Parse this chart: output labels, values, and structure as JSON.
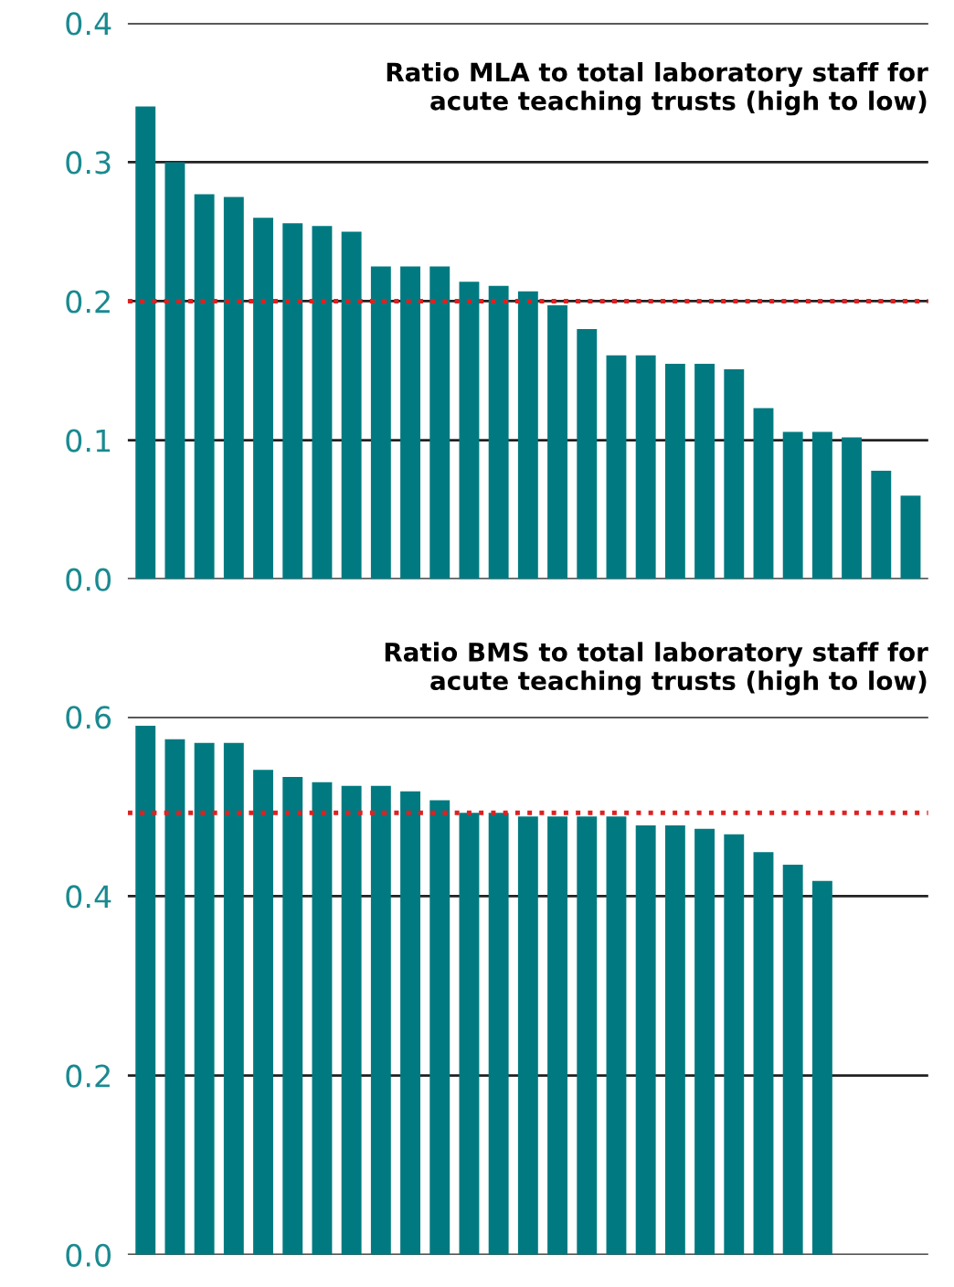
{
  "chart_data": [
    {
      "type": "bar",
      "title": "Ratio MLA to total laboratory staff for\nacute teaching trusts (high to low)",
      "categories": [
        null,
        null,
        null,
        null,
        null,
        null,
        null,
        null,
        null,
        null,
        null,
        null,
        null,
        null,
        null,
        null,
        null,
        null,
        null,
        null,
        null,
        null,
        null,
        null,
        null,
        null,
        null
      ],
      "values": [
        0.34,
        0.3,
        0.277,
        0.275,
        0.26,
        0.256,
        0.254,
        0.25,
        0.225,
        0.225,
        0.225,
        0.214,
        0.211,
        0.207,
        0.197,
        0.18,
        0.161,
        0.161,
        0.155,
        0.155,
        0.151,
        0.123,
        0.106,
        0.106,
        0.102,
        0.078,
        0.06
      ],
      "color": "#007a80",
      "ylim": [
        0,
        0.4
      ],
      "yticks": [
        {
          "value": 0,
          "label": "0.0"
        },
        0.1,
        0.2,
        0.3,
        0.4
      ],
      "grid": "y",
      "tick_labels": "y",
      "ref_lines": [
        {
          "axis": "y",
          "value": 0.2,
          "color": "#e02020",
          "line_style": "dotted"
        }
      ]
    },
    {
      "type": "bar",
      "title": "Ratio BMS to total laboratory staff for\nacute teaching trusts (high to low)",
      "categories": [
        null,
        null,
        null,
        null,
        null,
        null,
        null,
        null,
        null,
        null,
        null,
        null,
        null,
        null,
        null,
        null,
        null,
        null,
        null,
        null,
        null,
        null,
        null,
        null
      ],
      "values": [
        0.59,
        0.575,
        0.571,
        0.571,
        0.541,
        0.533,
        0.527,
        0.523,
        0.523,
        0.517,
        0.507,
        0.493,
        0.493,
        0.489,
        0.489,
        0.489,
        0.489,
        0.479,
        0.479,
        0.475,
        0.469,
        0.449,
        0.435,
        0.417
      ],
      "color": "#007a80",
      "ylim": [
        0,
        0.6
      ],
      "yticks": [
        {
          "value": 0,
          "label": "0.0"
        },
        0.2,
        0.4,
        0.6
      ],
      "grid": "y",
      "tick_labels": "y",
      "ref_lines": [
        {
          "axis": "y",
          "value": 0.493,
          "color": "#e02020",
          "line_style": "dotted"
        }
      ]
    }
  ]
}
